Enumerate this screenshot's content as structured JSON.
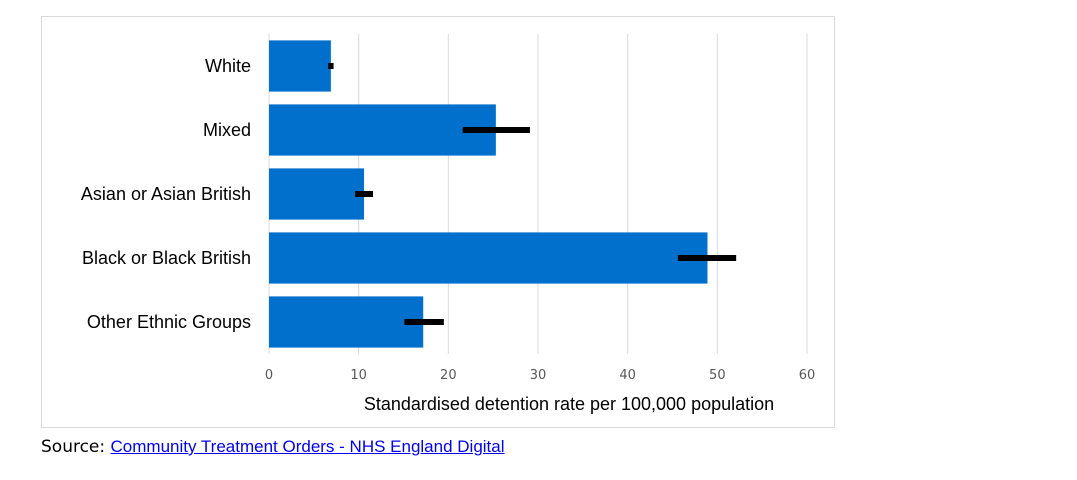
{
  "chart_data": {
    "type": "bar",
    "orientation": "horizontal",
    "categories": [
      "White",
      "Mixed",
      "Asian or Asian British",
      "Black or Black British",
      "Other Ethnic Groups"
    ],
    "values": [
      6.9,
      25.3,
      10.6,
      48.9,
      17.2
    ],
    "error_bars": [
      [
        6.6,
        7.2
      ],
      [
        21.6,
        29.1
      ],
      [
        9.6,
        11.6
      ],
      [
        45.6,
        52.1
      ],
      [
        15.1,
        19.5
      ]
    ],
    "xlabel": "Standardised detention rate per 100,000 population",
    "ylabel": "",
    "xlim": [
      0,
      60
    ],
    "xticks": [
      0,
      10,
      20,
      30,
      40,
      50,
      60
    ],
    "grid": true,
    "bar_color": "#0070cc",
    "error_color": "#000000",
    "gridline_color": "#d9d9d9"
  },
  "source": {
    "prefix": "Source: ",
    "link_text": "Community Treatment Orders - NHS England Digital"
  }
}
